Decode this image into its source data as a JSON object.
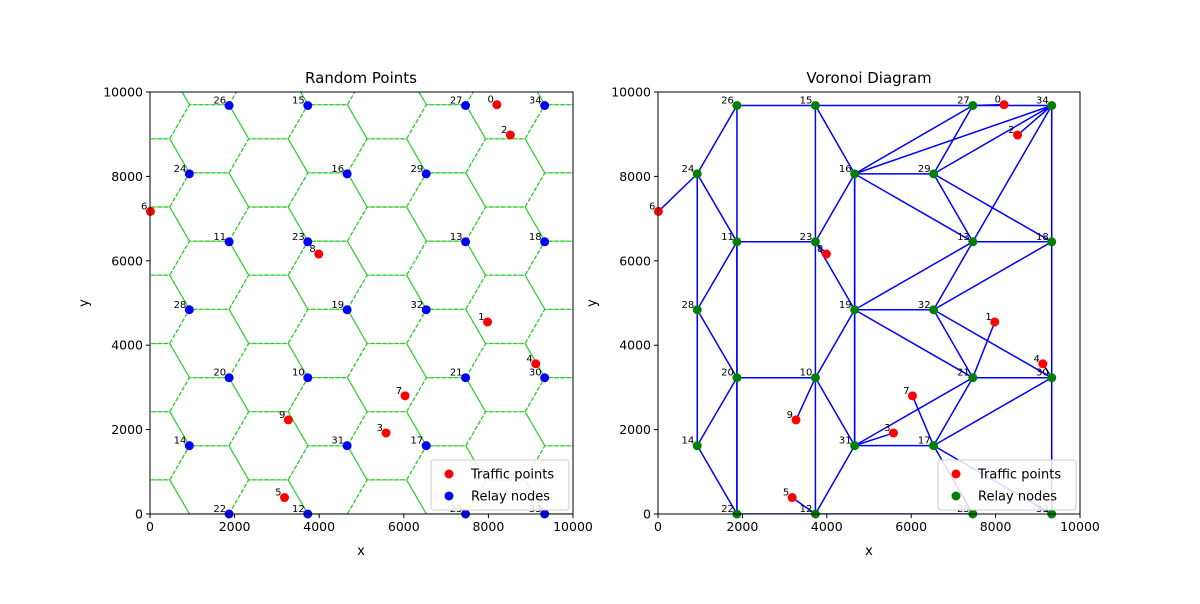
{
  "chart_data": [
    {
      "type": "scatter",
      "title": "Random Points",
      "xlabel": "x",
      "ylabel": "y",
      "xlim": [
        0,
        10000
      ],
      "ylim": [
        0,
        10000
      ],
      "xticks": [
        0,
        2000,
        4000,
        6000,
        8000,
        10000
      ],
      "yticks": [
        0,
        2000,
        4000,
        6000,
        8000,
        10000
      ],
      "grid": false,
      "legend": {
        "position": "lower-right",
        "entries": [
          {
            "label": "Traffic points",
            "color": "#ff0000"
          },
          {
            "label": "Relay nodes",
            "color": "#0000ff"
          }
        ]
      },
      "overlay": "hexagonal-grid-dashed",
      "overlay_color": "#32cd32",
      "series": [
        {
          "name": "Traffic points",
          "color": "#ff0000",
          "points": [
            {
              "label": "0",
              "x": 8200,
              "y": 9700
            },
            {
              "label": "1",
              "x": 7980,
              "y": 4550
            },
            {
              "label": "2",
              "x": 8520,
              "y": 8980
            },
            {
              "label": "3",
              "x": 5580,
              "y": 1920
            },
            {
              "label": "4",
              "x": 9120,
              "y": 3560
            },
            {
              "label": "5",
              "x": 3180,
              "y": 390
            },
            {
              "label": "6",
              "x": 10,
              "y": 7170
            },
            {
              "label": "7",
              "x": 6030,
              "y": 2800
            },
            {
              "label": "8",
              "x": 3990,
              "y": 6160
            },
            {
              "label": "9",
              "x": 3270,
              "y": 2230
            }
          ]
        },
        {
          "name": "Relay nodes",
          "color": "#0000ff",
          "points": [
            {
              "label": "10",
              "x": 3730,
              "y": 3230
            },
            {
              "label": "11",
              "x": 1870,
              "y": 6450
            },
            {
              "label": "12",
              "x": 3730,
              "y": 0
            },
            {
              "label": "13",
              "x": 7460,
              "y": 6450
            },
            {
              "label": "14",
              "x": 930,
              "y": 1620
            },
            {
              "label": "15",
              "x": 3730,
              "y": 9680
            },
            {
              "label": "16",
              "x": 4660,
              "y": 8060
            },
            {
              "label": "17",
              "x": 6530,
              "y": 1620
            },
            {
              "label": "18",
              "x": 9330,
              "y": 6450
            },
            {
              "label": "19",
              "x": 4660,
              "y": 4840
            },
            {
              "label": "20",
              "x": 1870,
              "y": 3230
            },
            {
              "label": "21",
              "x": 7460,
              "y": 3230
            },
            {
              "label": "22",
              "x": 1870,
              "y": 0
            },
            {
              "label": "23",
              "x": 3730,
              "y": 6450
            },
            {
              "label": "24",
              "x": 930,
              "y": 8060
            },
            {
              "label": "25",
              "x": 7460,
              "y": 0
            },
            {
              "label": "26",
              "x": 1870,
              "y": 9680
            },
            {
              "label": "27",
              "x": 7460,
              "y": 9680
            },
            {
              "label": "28",
              "x": 930,
              "y": 4840
            },
            {
              "label": "29",
              "x": 6530,
              "y": 8060
            },
            {
              "label": "30",
              "x": 9330,
              "y": 3230
            },
            {
              "label": "31",
              "x": 4660,
              "y": 1620
            },
            {
              "label": "32",
              "x": 6530,
              "y": 4840
            },
            {
              "label": "33",
              "x": 9330,
              "y": 0
            },
            {
              "label": "34",
              "x": 9330,
              "y": 9680
            }
          ]
        }
      ]
    },
    {
      "type": "scatter",
      "title": "Voronoi Diagram",
      "xlabel": "x",
      "ylabel": "y",
      "xlim": [
        0,
        10000
      ],
      "ylim": [
        0,
        10000
      ],
      "xticks": [
        0,
        2000,
        4000,
        6000,
        8000,
        10000
      ],
      "yticks": [
        0,
        2000,
        4000,
        6000,
        8000,
        10000
      ],
      "grid": false,
      "legend": {
        "position": "lower-right",
        "entries": [
          {
            "label": "Traffic points",
            "color": "#ff0000"
          },
          {
            "label": "Relay nodes",
            "color": "#008000"
          }
        ]
      },
      "edge_color": "#0000ff",
      "series": [
        {
          "name": "Traffic points",
          "color": "#ff0000",
          "points": [
            {
              "label": "0",
              "x": 8200,
              "y": 9700
            },
            {
              "label": "1",
              "x": 7980,
              "y": 4550
            },
            {
              "label": "2",
              "x": 8520,
              "y": 8980
            },
            {
              "label": "3",
              "x": 5580,
              "y": 1920
            },
            {
              "label": "4",
              "x": 9120,
              "y": 3560
            },
            {
              "label": "5",
              "x": 3180,
              "y": 390
            },
            {
              "label": "6",
              "x": 10,
              "y": 7170
            },
            {
              "label": "7",
              "x": 6030,
              "y": 2800
            },
            {
              "label": "8",
              "x": 3990,
              "y": 6160
            },
            {
              "label": "9",
              "x": 3270,
              "y": 2230
            }
          ]
        },
        {
          "name": "Relay nodes",
          "color": "#008000",
          "points": [
            {
              "label": "10",
              "x": 3730,
              "y": 3230
            },
            {
              "label": "11",
              "x": 1870,
              "y": 6450
            },
            {
              "label": "12",
              "x": 3730,
              "y": 0
            },
            {
              "label": "13",
              "x": 7460,
              "y": 6450
            },
            {
              "label": "14",
              "x": 930,
              "y": 1620
            },
            {
              "label": "15",
              "x": 3730,
              "y": 9680
            },
            {
              "label": "16",
              "x": 4660,
              "y": 8060
            },
            {
              "label": "17",
              "x": 6530,
              "y": 1620
            },
            {
              "label": "18",
              "x": 9330,
              "y": 6450
            },
            {
              "label": "19",
              "x": 4660,
              "y": 4840
            },
            {
              "label": "20",
              "x": 1870,
              "y": 3230
            },
            {
              "label": "21",
              "x": 7460,
              "y": 3230
            },
            {
              "label": "22",
              "x": 1870,
              "y": 0
            },
            {
              "label": "23",
              "x": 3730,
              "y": 6450
            },
            {
              "label": "24",
              "x": 930,
              "y": 8060
            },
            {
              "label": "25",
              "x": 7460,
              "y": 0
            },
            {
              "label": "26",
              "x": 1870,
              "y": 9680
            },
            {
              "label": "27",
              "x": 7460,
              "y": 9680
            },
            {
              "label": "28",
              "x": 930,
              "y": 4840
            },
            {
              "label": "29",
              "x": 6530,
              "y": 8060
            },
            {
              "label": "30",
              "x": 9330,
              "y": 3230
            },
            {
              "label": "31",
              "x": 4660,
              "y": 1620
            },
            {
              "label": "32",
              "x": 6530,
              "y": 4840
            },
            {
              "label": "33",
              "x": 9330,
              "y": 0
            },
            {
              "label": "34",
              "x": 9330,
              "y": 9680
            }
          ]
        }
      ],
      "edges": [
        [
          "26",
          "15"
        ],
        [
          "15",
          "27"
        ],
        [
          "27",
          "34"
        ],
        [
          "26",
          "22"
        ],
        [
          "26",
          "24"
        ],
        [
          "24",
          "11"
        ],
        [
          "24",
          "28"
        ],
        [
          "11",
          "28"
        ],
        [
          "28",
          "20"
        ],
        [
          "28",
          "14"
        ],
        [
          "20",
          "14"
        ],
        [
          "14",
          "22"
        ],
        [
          "20",
          "22"
        ],
        [
          "11",
          "20"
        ],
        [
          "11",
          "23"
        ],
        [
          "20",
          "10"
        ],
        [
          "22",
          "12"
        ],
        [
          "10",
          "12"
        ],
        [
          "15",
          "23"
        ],
        [
          "23",
          "10"
        ],
        [
          "23",
          "19"
        ],
        [
          "19",
          "10"
        ],
        [
          "10",
          "31"
        ],
        [
          "31",
          "12"
        ],
        [
          "15",
          "16"
        ],
        [
          "16",
          "23"
        ],
        [
          "16",
          "19"
        ],
        [
          "16",
          "29"
        ],
        [
          "16",
          "27"
        ],
        [
          "16",
          "34"
        ],
        [
          "16",
          "13"
        ],
        [
          "16",
          "31"
        ],
        [
          "29",
          "27"
        ],
        [
          "29",
          "34"
        ],
        [
          "29",
          "13"
        ],
        [
          "29",
          "18"
        ],
        [
          "34",
          "13"
        ],
        [
          "34",
          "18"
        ],
        [
          "13",
          "18"
        ],
        [
          "13",
          "19"
        ],
        [
          "13",
          "32"
        ],
        [
          "19",
          "32"
        ],
        [
          "32",
          "18"
        ],
        [
          "32",
          "21"
        ],
        [
          "32",
          "30"
        ],
        [
          "19",
          "31"
        ],
        [
          "19",
          "21"
        ],
        [
          "21",
          "30"
        ],
        [
          "30",
          "18"
        ],
        [
          "30",
          "33"
        ],
        [
          "34",
          "33"
        ],
        [
          "31",
          "17"
        ],
        [
          "31",
          "21"
        ],
        [
          "17",
          "21"
        ],
        [
          "17",
          "30"
        ],
        [
          "17",
          "25"
        ],
        [
          "17",
          "33"
        ],
        [
          "12",
          "25"
        ],
        [
          "21",
          "1"
        ],
        [
          "31",
          "3"
        ],
        [
          "7",
          "17"
        ],
        [
          "0",
          "27"
        ],
        [
          "2",
          "34"
        ],
        [
          "6",
          "24"
        ],
        [
          "8",
          "23"
        ],
        [
          "9",
          "10"
        ],
        [
          "5",
          "12"
        ],
        [
          "4",
          "30"
        ]
      ]
    }
  ]
}
